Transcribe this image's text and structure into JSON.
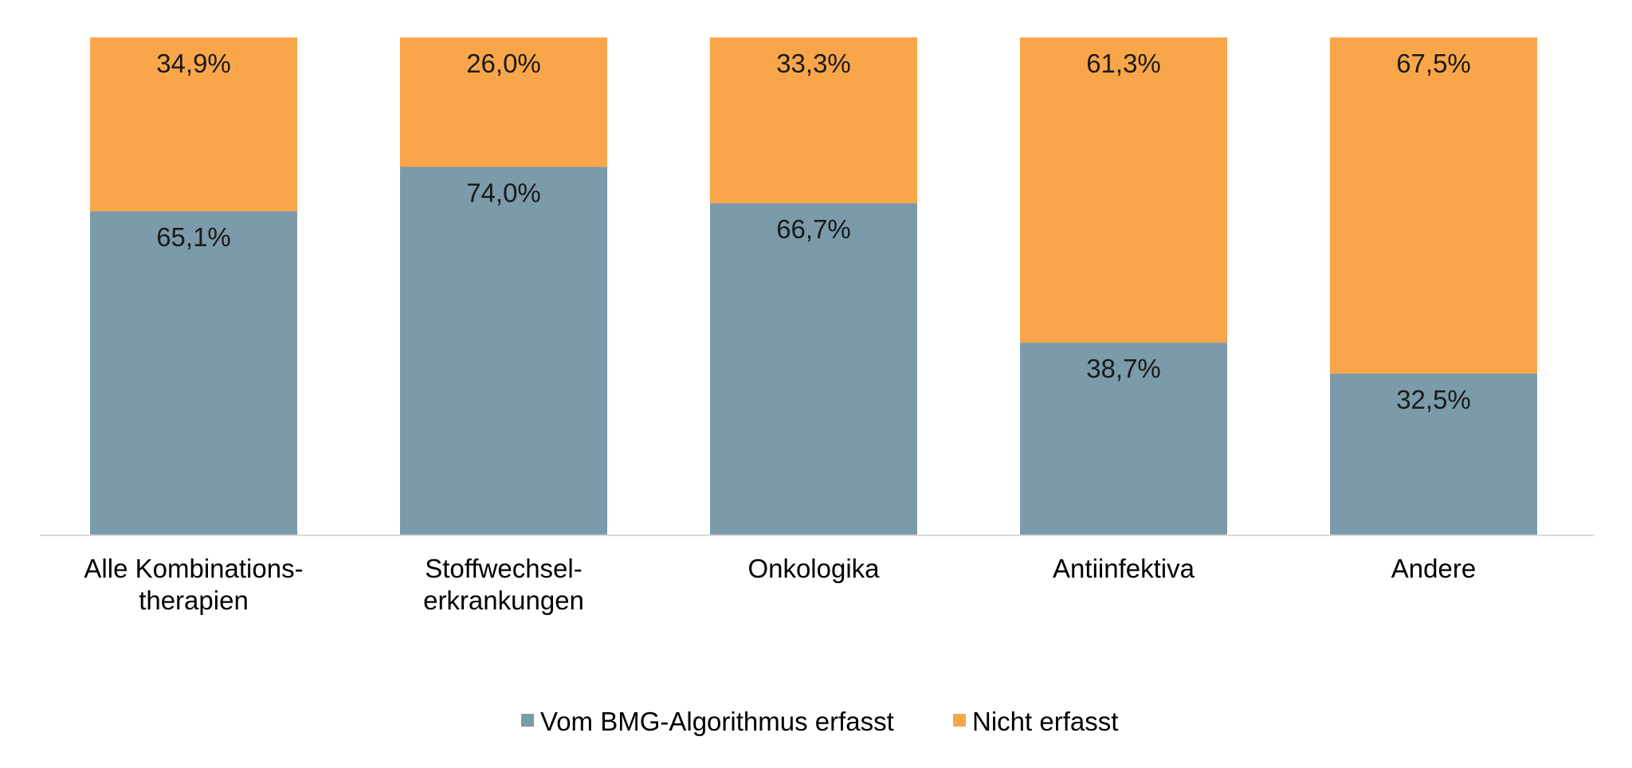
{
  "chart_data": {
    "type": "bar",
    "stacked": true,
    "percent_stacked": true,
    "categories": [
      [
        "Alle Kombinations-",
        "therapien"
      ],
      [
        "Stoffwechsel-",
        "erkrankungen"
      ],
      [
        "Onkologika"
      ],
      [
        "Antiinfektiva"
      ],
      [
        "Andere"
      ]
    ],
    "series": [
      {
        "name": "Vom BMG-Algorithmus erfasst",
        "color": "#7b9aaa",
        "values": [
          65.1,
          74.0,
          66.7,
          38.7,
          32.5
        ],
        "labels": [
          "65,1%",
          "74,0%",
          "66,7%",
          "38,7%",
          "32,5%"
        ]
      },
      {
        "name": "Nicht erfasst",
        "color": "#f9a64a",
        "values": [
          34.9,
          26.0,
          33.3,
          61.3,
          67.5
        ],
        "labels": [
          "34,9%",
          "26,0%",
          "33,3%",
          "61,3%",
          "67,5%"
        ]
      }
    ],
    "ylim": [
      0,
      100
    ],
    "grid": false,
    "legend_position": "bottom",
    "axis_color": "#d9d9d9"
  }
}
